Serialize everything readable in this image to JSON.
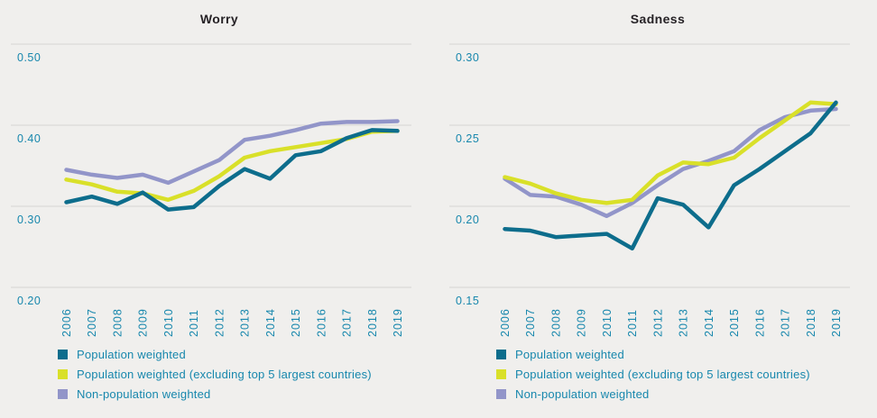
{
  "style": {
    "background": "#f0efed",
    "gridline_color": "#d6d5d2",
    "axis_label_color": "#1787ad",
    "title_color": "#262226"
  },
  "chart_data": [
    {
      "type": "line",
      "title": "Worry",
      "x": [
        "2006",
        "2007",
        "2008",
        "2009",
        "2010",
        "2011",
        "2012",
        "2013",
        "2014",
        "2015",
        "2016",
        "2017",
        "2018",
        "2019"
      ],
      "ylim": [
        0.2,
        0.5
      ],
      "ytick_values": [
        0.5,
        0.4,
        0.3,
        0.2
      ],
      "ytick_labels": [
        "0.50",
        "0.40",
        "0.30",
        "0.20"
      ],
      "grid": true,
      "legend_position": "bottom-left",
      "series": [
        {
          "name": "Population weighted",
          "color": "#0d6d8c",
          "values": [
            0.305,
            0.312,
            0.303,
            0.317,
            0.296,
            0.299,
            0.325,
            0.346,
            0.334,
            0.363,
            0.368,
            0.384,
            0.394,
            0.393
          ]
        },
        {
          "name": "Population weighted (excluding top 5 largest countries)",
          "color": "#d9e029",
          "values": [
            0.333,
            0.327,
            0.318,
            0.316,
            0.308,
            0.319,
            0.337,
            0.36,
            0.368,
            0.373,
            0.378,
            0.383,
            0.392,
            0.393
          ]
        },
        {
          "name": "Non-population weighted",
          "color": "#9295c9",
          "values": [
            0.345,
            0.339,
            0.335,
            0.339,
            0.329,
            0.343,
            0.357,
            0.382,
            0.387,
            0.394,
            0.402,
            0.404,
            0.404,
            0.405
          ]
        }
      ]
    },
    {
      "type": "line",
      "title": "Sadness",
      "x": [
        "2006",
        "2007",
        "2008",
        "2009",
        "2010",
        "2011",
        "2012",
        "2013",
        "2014",
        "2015",
        "2016",
        "2017",
        "2018",
        "2019"
      ],
      "ylim": [
        0.15,
        0.3
      ],
      "ytick_values": [
        0.3,
        0.25,
        0.2,
        0.15
      ],
      "ytick_labels": [
        "0.30",
        "0.25",
        "0.20",
        "0.15"
      ],
      "grid": true,
      "legend_position": "bottom-left",
      "series": [
        {
          "name": "Population weighted",
          "color": "#0d6d8c",
          "values": [
            0.186,
            0.185,
            0.181,
            0.182,
            0.183,
            0.174,
            0.205,
            0.201,
            0.187,
            0.213,
            0.223,
            0.234,
            0.245,
            0.264
          ]
        },
        {
          "name": "Population weighted (excluding top 5 largest countries)",
          "color": "#d9e029",
          "values": [
            0.218,
            0.214,
            0.208,
            0.204,
            0.202,
            0.204,
            0.219,
            0.227,
            0.226,
            0.23,
            0.242,
            0.253,
            0.264,
            0.263
          ]
        },
        {
          "name": "Non-population weighted",
          "color": "#9295c9",
          "values": [
            0.217,
            0.207,
            0.206,
            0.201,
            0.194,
            0.202,
            0.213,
            0.223,
            0.228,
            0.234,
            0.247,
            0.255,
            0.259,
            0.26
          ]
        }
      ]
    }
  ]
}
